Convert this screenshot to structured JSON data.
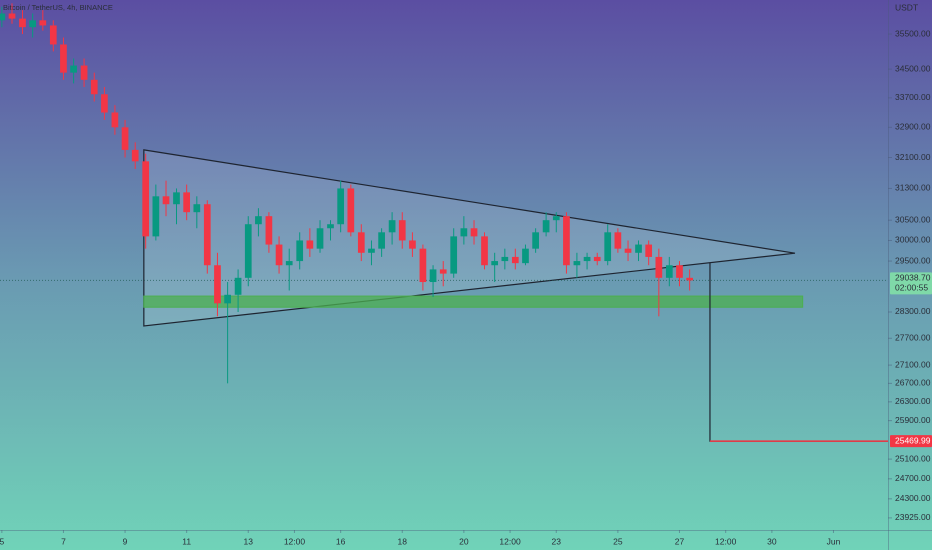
{
  "chart_data": {
    "type": "candlestick",
    "title": "Bitcoin / TetherUS, 4h, BINANCE",
    "currency": "USDT",
    "log_scale": true,
    "up_color": "#089981",
    "down_color": "#f23645",
    "x": [
      5.0,
      5.33,
      5.67,
      6.0,
      6.33,
      6.67,
      7.0,
      7.33,
      7.67,
      8.0,
      8.33,
      8.67,
      9.0,
      9.33,
      9.67,
      10.0,
      10.33,
      10.67,
      11.0,
      11.33,
      11.67,
      12.0,
      12.33,
      12.67,
      13.0,
      13.33,
      13.67,
      14.0,
      14.33,
      14.67,
      15.0,
      15.33,
      15.67,
      16.0,
      16.33,
      16.67,
      17.0,
      17.33,
      17.67,
      18.0,
      18.33,
      18.67,
      19.0,
      19.33,
      19.67,
      20.0,
      20.33,
      20.67,
      21.0,
      21.33,
      21.67,
      22.0,
      22.33,
      22.67,
      23.0,
      23.33,
      23.67,
      24.0,
      24.33,
      24.67,
      25.0,
      25.33,
      25.67,
      26.0,
      26.33,
      26.67,
      27.0,
      27.33
    ],
    "open": [
      35900,
      36100,
      35950,
      35700,
      35900,
      35750,
      35200,
      34400,
      34600,
      34200,
      33800,
      33300,
      32900,
      32300,
      32000,
      30100,
      31100,
      30900,
      31200,
      30700,
      30900,
      29400,
      28500,
      28700,
      29100,
      30400,
      30600,
      29900,
      29400,
      29500,
      30000,
      29800,
      30300,
      30400,
      31300,
      30200,
      29700,
      29800,
      30200,
      30500,
      30000,
      29800,
      29000,
      29300,
      29200,
      30100,
      30300,
      30100,
      29400,
      29500,
      29600,
      29450,
      29800,
      30200,
      30500,
      30600,
      29400,
      29500,
      29600,
      29500,
      30200,
      29800,
      29700,
      29900,
      29600,
      29100,
      29400,
      29100
    ],
    "high": [
      36300,
      36400,
      36200,
      36100,
      36200,
      35900,
      35400,
      34800,
      34800,
      34400,
      34000,
      33500,
      33100,
      32500,
      32200,
      31400,
      31500,
      31300,
      31400,
      31100,
      31000,
      29700,
      29000,
      29300,
      30600,
      30800,
      30700,
      30100,
      29800,
      30200,
      30300,
      30500,
      30500,
      31500,
      31400,
      30400,
      30000,
      30300,
      30700,
      30700,
      30200,
      29900,
      29400,
      29500,
      30300,
      30600,
      30500,
      30200,
      29700,
      29800,
      29800,
      29900,
      30300,
      30700,
      30700,
      30700,
      29700,
      29700,
      29700,
      30400,
      30300,
      30000,
      30000,
      30000,
      29800,
      29600,
      29500,
      29300
    ],
    "low": [
      35700,
      35800,
      35500,
      35400,
      35600,
      35000,
      34200,
      34100,
      34000,
      33600,
      33100,
      32700,
      32100,
      31800,
      29800,
      30000,
      30600,
      30400,
      30500,
      30300,
      29200,
      28200,
      26700,
      28300,
      28900,
      30100,
      29700,
      29200,
      28800,
      29300,
      29600,
      29700,
      30000,
      30200,
      30100,
      29500,
      29400,
      29600,
      29900,
      29800,
      29600,
      28800,
      28650,
      28900,
      29100,
      29900,
      29900,
      29300,
      29000,
      29300,
      29300,
      29400,
      29700,
      30100,
      30200,
      29200,
      29100,
      29300,
      29400,
      29400,
      29700,
      29500,
      29500,
      29400,
      28200,
      28900,
      28900,
      28800
    ],
    "close": [
      36100,
      35950,
      35700,
      35900,
      35750,
      35200,
      34400,
      34600,
      34200,
      33800,
      33300,
      32900,
      32300,
      32000,
      30100,
      31100,
      30900,
      31200,
      30700,
      30900,
      29400,
      28500,
      28700,
      29100,
      30400,
      30600,
      29900,
      29400,
      29500,
      30000,
      29800,
      30300,
      30400,
      31300,
      30200,
      29700,
      29800,
      30200,
      30500,
      30000,
      29800,
      29000,
      29300,
      29200,
      30100,
      30300,
      30100,
      29400,
      29500,
      29600,
      29450,
      29800,
      30200,
      30500,
      30600,
      29400,
      29500,
      29600,
      29500,
      30200,
      29800,
      29700,
      29900,
      29600,
      29100,
      29400,
      29100,
      29038.7
    ],
    "xlim": [
      4.94,
      33.77
    ],
    "ylim": [
      23690,
      36500
    ],
    "xticks": [
      5,
      7,
      9,
      11,
      13,
      {
        "value": 14.5,
        "label": "12:00"
      },
      16,
      18,
      20,
      {
        "value": 21.5,
        "label": "12:00"
      },
      23,
      25,
      27,
      {
        "value": 28.5,
        "label": "12:00"
      },
      30,
      {
        "value": 32,
        "label": "Jun"
      }
    ],
    "yticks": [
      {
        "value": 35500,
        "label": "35500.00"
      },
      {
        "value": 34500,
        "label": "34500.00"
      },
      {
        "value": 33700,
        "label": "33700.00"
      },
      {
        "value": 32900,
        "label": "32900.00"
      },
      {
        "value": 32100,
        "label": "32100.00"
      },
      {
        "value": 31300,
        "label": "31300.00"
      },
      {
        "value": 30500,
        "label": "30500.00"
      },
      {
        "value": 30000,
        "label": "30000.00"
      },
      {
        "value": 29500,
        "label": "29500.00"
      },
      {
        "value": 28300,
        "label": "28300.00"
      },
      {
        "value": 27700,
        "label": "27700.00"
      },
      {
        "value": 27100,
        "label": "27100.00"
      },
      {
        "value": 26700,
        "label": "26700.00"
      },
      {
        "value": 26300,
        "label": "26300.00"
      },
      {
        "value": 25900,
        "label": "25900.00"
      },
      {
        "value": 25100,
        "label": "25100.00"
      },
      {
        "value": 24700,
        "label": "24700.00"
      },
      {
        "value": 24300,
        "label": "24300.00"
      },
      {
        "value": 23925,
        "label": "23925.00"
      }
    ],
    "last_price": {
      "value": 29038.7,
      "label": "29038.70"
    },
    "countdown": "02:00:55",
    "target_price": 25469.99,
    "triangle": {
      "x": [
        9.61,
        9.61,
        30.75
      ],
      "y": [
        32300,
        27980,
        29690
      ],
      "color": "#1e2430"
    },
    "zone": {
      "x": [
        9.61,
        31.0
      ],
      "y": [
        28670,
        28410
      ],
      "color": "#4caf50"
    },
    "target_path": {
      "x": [
        27.99,
        27.99,
        33.77
      ],
      "y": [
        29460,
        25470,
        25470
      ],
      "color": "#1e2430"
    },
    "target_line_color": "#f23645"
  }
}
